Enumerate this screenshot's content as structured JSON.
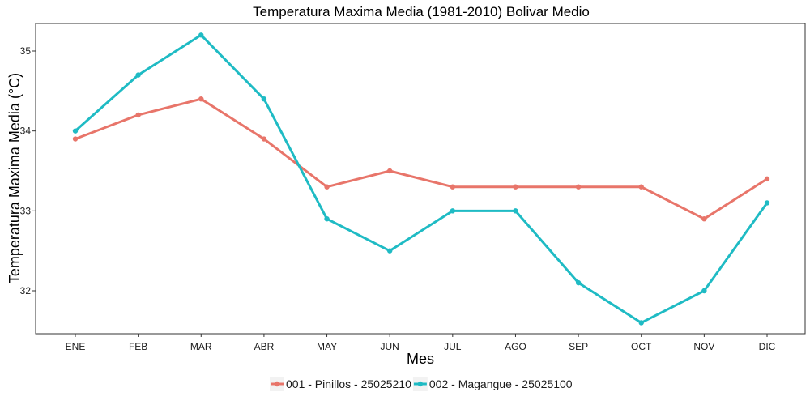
{
  "chart_data": {
    "type": "line",
    "title": "Temperatura Maxima Media (1981-2010)  Bolivar Medio",
    "xlabel": "Mes",
    "ylabel": "Temperatura Maxima Media  (°C)",
    "categories": [
      "ENE",
      "FEB",
      "MAR",
      "ABR",
      "MAY",
      "JUN",
      "JUL",
      "AGO",
      "SEP",
      "OCT",
      "NOV",
      "DIC"
    ],
    "yticks": [
      32,
      33,
      34,
      35
    ],
    "ylim": [
      31.5,
      35.5
    ],
    "grid": false,
    "legend_position": "bottom",
    "series": [
      {
        "name": "001 - Pinillos - 25025210",
        "color": "#E8756A",
        "values": [
          33.9,
          34.2,
          34.4,
          33.9,
          33.3,
          33.5,
          33.3,
          33.3,
          33.3,
          33.3,
          32.9,
          33.4
        ]
      },
      {
        "name": "002 - Magangue - 25025100",
        "color": "#1FBBC4",
        "values": [
          34.0,
          34.7,
          35.2,
          34.4,
          32.9,
          32.5,
          33.0,
          33.0,
          32.1,
          31.6,
          32.0,
          33.1
        ]
      }
    ]
  }
}
